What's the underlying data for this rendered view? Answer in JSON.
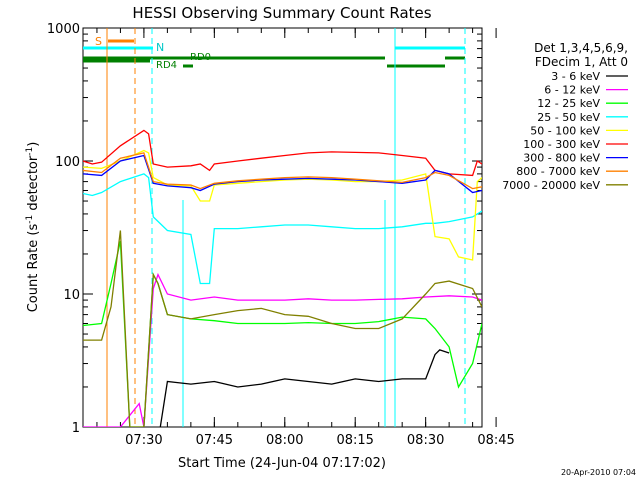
{
  "chart_data": {
    "type": "line",
    "title": "HESSI Observing Summary Count Rates",
    "xlabel": "Start Time (24-Jun-04 07:17:02)",
    "ylabel": "Count Rate (s",
    "ylabel_sup1": "-1",
    "ylabel_mid": " detector",
    "ylabel_sup2": "-1",
    "ylabel_end": ")",
    "yscale": "log",
    "ylim": [
      1,
      1000
    ],
    "y_ticks": [
      {
        "v": 1,
        "label": "1"
      },
      {
        "v": 10,
        "label": "10"
      },
      {
        "v": 100,
        "label": "100"
      },
      {
        "v": 1000,
        "label": "1000"
      }
    ],
    "xlim": [
      17.03,
      102
    ],
    "x_ticks": [
      {
        "v": 30,
        "label": "07:30"
      },
      {
        "v": 45,
        "label": "07:45"
      },
      {
        "v": 60,
        "label": "08:00"
      },
      {
        "v": 75,
        "label": "08:15"
      },
      {
        "v": 90,
        "label": "08:30"
      },
      {
        "v": 105,
        "label": "08:45"
      }
    ],
    "x_tick_unit": "minutes after 07:00",
    "footer_date": "20-Apr-2010 07:04",
    "legend_header": [
      "Det 1,3,4,5,6,9,",
      "FDecim 1, Att 0"
    ],
    "series": [
      {
        "name": "3 - 6 keV",
        "color": "#000000",
        "points": [
          [
            33.5,
            1
          ],
          [
            35,
            2.2
          ],
          [
            40,
            2.1
          ],
          [
            45,
            2.2
          ],
          [
            50,
            2
          ],
          [
            55,
            2.1
          ],
          [
            60,
            2.3
          ],
          [
            65,
            2.2
          ],
          [
            70,
            2.1
          ],
          [
            75,
            2.3
          ],
          [
            80,
            2.2
          ],
          [
            85,
            2.3
          ],
          [
            90,
            2.3
          ],
          [
            92,
            3.5
          ],
          [
            93,
            3.8
          ],
          [
            95,
            3.6
          ]
        ]
      },
      {
        "name": "6 - 12 keV",
        "color": "#ff00ff",
        "points": [
          [
            17,
            1
          ],
          [
            21,
            1
          ],
          [
            25,
            1
          ],
          [
            29,
            1.5
          ],
          [
            30,
            1
          ],
          [
            32,
            11
          ],
          [
            33,
            14
          ],
          [
            35,
            10
          ],
          [
            40,
            9
          ],
          [
            45,
            9.5
          ],
          [
            50,
            9
          ],
          [
            55,
            9
          ],
          [
            60,
            9
          ],
          [
            65,
            9.2
          ],
          [
            70,
            9
          ],
          [
            75,
            9
          ],
          [
            80,
            9.1
          ],
          [
            85,
            9.2
          ],
          [
            90,
            9.5
          ],
          [
            95,
            9.7
          ],
          [
            100,
            9.5
          ],
          [
            102,
            9
          ]
        ]
      },
      {
        "name": "12 - 25 keV",
        "color": "#00ff00",
        "points": [
          [
            17,
            5.8
          ],
          [
            21,
            6
          ],
          [
            23,
            12
          ],
          [
            25,
            25
          ],
          [
            27,
            1
          ],
          [
            30,
            1
          ],
          [
            32,
            14
          ],
          [
            33,
            12
          ],
          [
            35,
            7
          ],
          [
            40,
            6.5
          ],
          [
            45,
            6.3
          ],
          [
            50,
            6
          ],
          [
            55,
            6
          ],
          [
            60,
            6
          ],
          [
            65,
            6.1
          ],
          [
            70,
            6
          ],
          [
            75,
            6
          ],
          [
            80,
            6.2
          ],
          [
            85,
            6.7
          ],
          [
            90,
            6.5
          ],
          [
            92,
            5.5
          ],
          [
            95,
            4
          ],
          [
            97,
            2
          ],
          [
            100,
            3
          ],
          [
            102,
            6
          ]
        ]
      },
      {
        "name": "25 - 50 keV",
        "color": "#00ffff",
        "points": [
          [
            17,
            57
          ],
          [
            19,
            55
          ],
          [
            21,
            58
          ],
          [
            25,
            70
          ],
          [
            30,
            80
          ],
          [
            31,
            75
          ],
          [
            32,
            38
          ],
          [
            35,
            30
          ],
          [
            40,
            28
          ],
          [
            42,
            12
          ],
          [
            44,
            12
          ],
          [
            45,
            31
          ],
          [
            50,
            31
          ],
          [
            55,
            32
          ],
          [
            60,
            33
          ],
          [
            65,
            33
          ],
          [
            70,
            32
          ],
          [
            75,
            31
          ],
          [
            80,
            31
          ],
          [
            85,
            32
          ],
          [
            90,
            34
          ],
          [
            92,
            34
          ],
          [
            95,
            35
          ],
          [
            100,
            38
          ],
          [
            102,
            42
          ]
        ]
      },
      {
        "name": "50 - 100 keV",
        "color": "#ffff00",
        "points": [
          [
            17,
            90
          ],
          [
            21,
            88
          ],
          [
            25,
            100
          ],
          [
            30,
            120
          ],
          [
            31,
            115
          ],
          [
            32,
            75
          ],
          [
            35,
            66
          ],
          [
            40,
            65
          ],
          [
            42,
            50
          ],
          [
            44,
            50
          ],
          [
            45,
            66
          ],
          [
            50,
            68
          ],
          [
            55,
            70
          ],
          [
            60,
            72
          ],
          [
            65,
            73
          ],
          [
            70,
            72
          ],
          [
            75,
            70
          ],
          [
            80,
            70
          ],
          [
            85,
            72
          ],
          [
            90,
            80
          ],
          [
            92,
            27
          ],
          [
            95,
            26
          ],
          [
            97,
            19
          ],
          [
            100,
            18
          ],
          [
            101,
            70
          ],
          [
            102,
            75
          ]
        ]
      },
      {
        "name": "100 - 300 keV",
        "color": "#ff0000",
        "points": [
          [
            17,
            100
          ],
          [
            19,
            95
          ],
          [
            21,
            98
          ],
          [
            25,
            130
          ],
          [
            30,
            170
          ],
          [
            31,
            160
          ],
          [
            32,
            95
          ],
          [
            35,
            90
          ],
          [
            40,
            92
          ],
          [
            42,
            95
          ],
          [
            44,
            85
          ],
          [
            45,
            95
          ],
          [
            50,
            100
          ],
          [
            55,
            105
          ],
          [
            60,
            110
          ],
          [
            65,
            115
          ],
          [
            70,
            117
          ],
          [
            75,
            116
          ],
          [
            80,
            115
          ],
          [
            85,
            110
          ],
          [
            90,
            105
          ],
          [
            92,
            85
          ],
          [
            95,
            80
          ],
          [
            100,
            78
          ],
          [
            101,
            100
          ],
          [
            102,
            95
          ]
        ]
      },
      {
        "name": "300 - 800 keV",
        "color": "#0000ff",
        "points": [
          [
            17,
            80
          ],
          [
            21,
            78
          ],
          [
            25,
            100
          ],
          [
            30,
            110
          ],
          [
            32,
            68
          ],
          [
            35,
            65
          ],
          [
            40,
            63
          ],
          [
            42,
            60
          ],
          [
            45,
            67
          ],
          [
            50,
            70
          ],
          [
            55,
            72
          ],
          [
            60,
            73
          ],
          [
            65,
            74
          ],
          [
            70,
            73
          ],
          [
            75,
            72
          ],
          [
            80,
            70
          ],
          [
            85,
            68
          ],
          [
            90,
            72
          ],
          [
            92,
            85
          ],
          [
            95,
            80
          ],
          [
            100,
            58
          ],
          [
            102,
            60
          ]
        ]
      },
      {
        "name": "800 - 7000 keV",
        "color": "#ff8000",
        "points": [
          [
            17,
            85
          ],
          [
            21,
            82
          ],
          [
            25,
            105
          ],
          [
            30,
            115
          ],
          [
            32,
            70
          ],
          [
            35,
            67
          ],
          [
            40,
            66
          ],
          [
            42,
            62
          ],
          [
            45,
            68
          ],
          [
            50,
            71
          ],
          [
            55,
            73
          ],
          [
            60,
            75
          ],
          [
            65,
            76
          ],
          [
            70,
            75
          ],
          [
            75,
            73
          ],
          [
            80,
            71
          ],
          [
            85,
            69
          ],
          [
            90,
            75
          ],
          [
            92,
            82
          ],
          [
            95,
            78
          ],
          [
            100,
            62
          ],
          [
            102,
            64
          ]
        ]
      },
      {
        "name": "7000 - 20000 keV",
        "color": "#808000",
        "points": [
          [
            17,
            4.5
          ],
          [
            21,
            4.5
          ],
          [
            23,
            8
          ],
          [
            25,
            30
          ],
          [
            27,
            1
          ],
          [
            30,
            1
          ],
          [
            32,
            14
          ],
          [
            33,
            12
          ],
          [
            35,
            7
          ],
          [
            40,
            6.5
          ],
          [
            45,
            7
          ],
          [
            50,
            7.5
          ],
          [
            55,
            7.8
          ],
          [
            60,
            7
          ],
          [
            65,
            6.8
          ],
          [
            70,
            6
          ],
          [
            75,
            5.5
          ],
          [
            80,
            5.5
          ],
          [
            85,
            6.5
          ],
          [
            90,
            10
          ],
          [
            92,
            12
          ],
          [
            95,
            12.5
          ],
          [
            100,
            11
          ],
          [
            102,
            8
          ]
        ]
      }
    ],
    "annotations": [
      {
        "label": "S",
        "color": "#ff8000"
      },
      {
        "label": "N",
        "color": "#00ffff"
      },
      {
        "label": "RD0",
        "color": "#008000"
      },
      {
        "label": "RD4",
        "color": "#008000"
      }
    ]
  }
}
